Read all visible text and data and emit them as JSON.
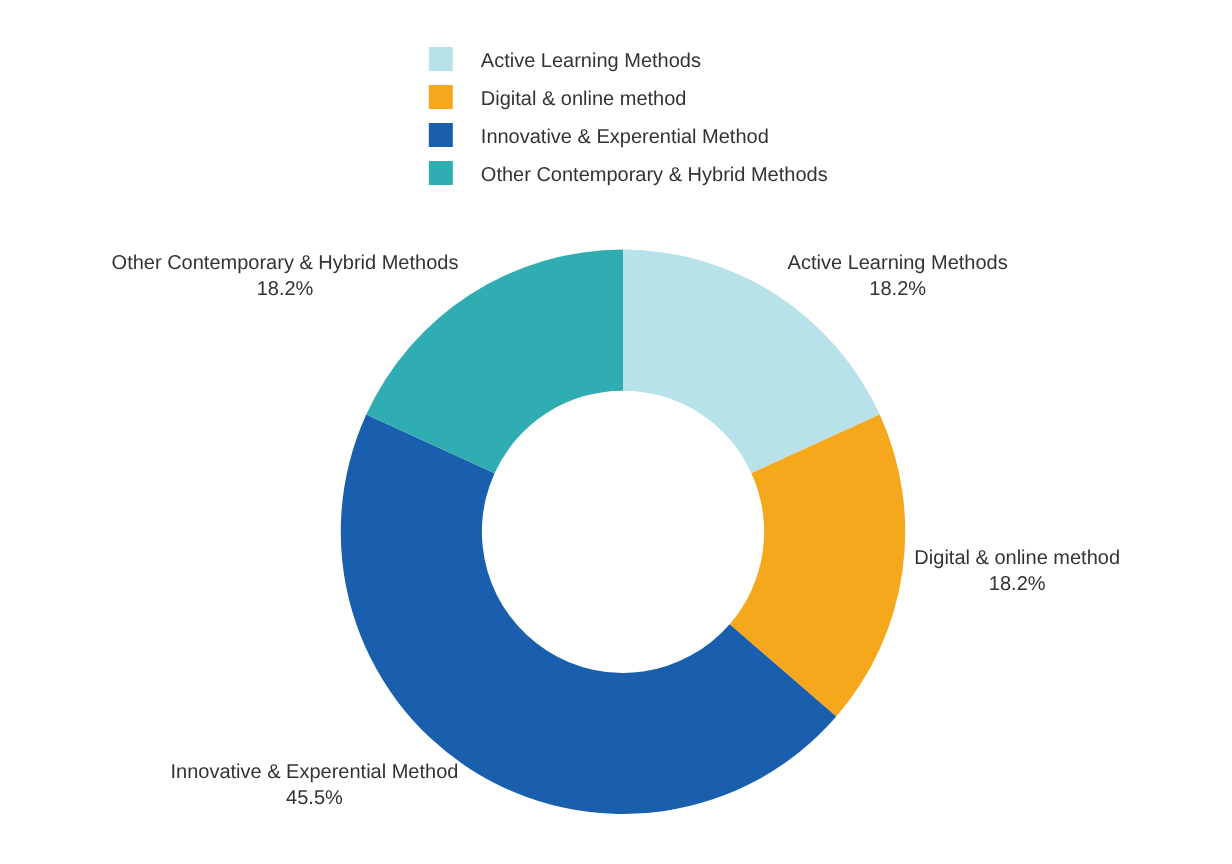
{
  "chart_data": {
    "type": "donut",
    "categories": [
      "Active Learning Methods",
      "Digital & online method",
      "Innovative & Experential Method",
      "Other Contemporary & Hybrid Methods"
    ],
    "values": [
      18.2,
      18.2,
      45.5,
      18.2
    ],
    "colors": [
      "#b8e2ea",
      "#f5a81c",
      "#1a5fad",
      "#2fadb3"
    ],
    "value_labels": [
      "18.2%",
      "18.2%",
      "45.5%",
      "18.2%"
    ],
    "legend": "top"
  }
}
